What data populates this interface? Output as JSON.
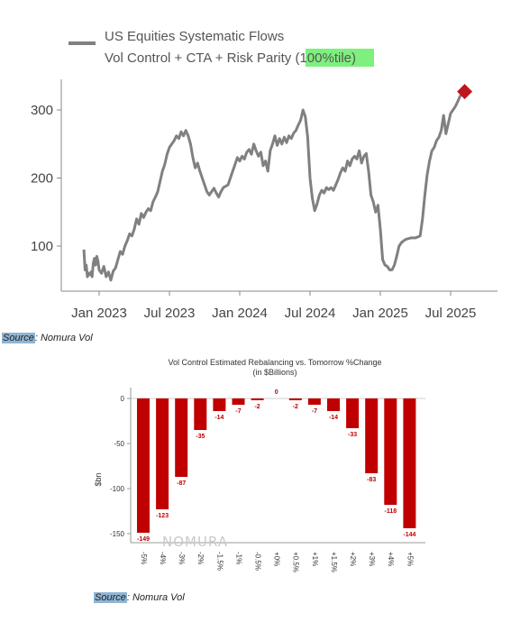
{
  "chart_data": [
    {
      "type": "line",
      "legend": {
        "line1": "US Equities Systematic Flows",
        "line2_prefix": "Vol Control + CTA + Risk Parity ",
        "line2_highlight": "(100%tile)",
        "placement": "top-left"
      },
      "xticks": [
        "Jan 2023",
        "Jul 2023",
        "Jan 2024",
        "Jul 2024",
        "Jan 2025",
        "Jul 2025"
      ],
      "yticks": [
        "100",
        "200",
        "300"
      ],
      "ylim": [
        40,
        350
      ],
      "xlim_months": [
        0,
        34
      ],
      "series": [
        {
          "color": "#808080",
          "points": [
            [
              -1.3,
              95
            ],
            [
              -1.2,
              65
            ],
            [
              -1.1,
              72
            ],
            [
              -1.0,
              55
            ],
            [
              -0.9,
              60
            ],
            [
              -0.8,
              58
            ],
            [
              -0.7,
              62
            ],
            [
              -0.6,
              55
            ],
            [
              -0.5,
              75
            ],
            [
              -0.4,
              82
            ],
            [
              -0.3,
              72
            ],
            [
              -0.2,
              85
            ],
            [
              -0.1,
              78
            ],
            [
              0.0,
              65
            ],
            [
              0.2,
              60
            ],
            [
              0.4,
              70
            ],
            [
              0.6,
              55
            ],
            [
              0.8,
              62
            ],
            [
              1.0,
              50
            ],
            [
              1.2,
              63
            ],
            [
              1.4,
              68
            ],
            [
              1.6,
              80
            ],
            [
              1.8,
              92
            ],
            [
              2.0,
              88
            ],
            [
              2.2,
              100
            ],
            [
              2.4,
              108
            ],
            [
              2.6,
              118
            ],
            [
              2.8,
              115
            ],
            [
              3.0,
              125
            ],
            [
              3.2,
              140
            ],
            [
              3.4,
              132
            ],
            [
              3.6,
              148
            ],
            [
              3.8,
              142
            ],
            [
              4.0,
              150
            ],
            [
              4.2,
              155
            ],
            [
              4.4,
              152
            ],
            [
              4.6,
              165
            ],
            [
              4.8,
              172
            ],
            [
              5.0,
              180
            ],
            [
              5.2,
              195
            ],
            [
              5.4,
              210
            ],
            [
              5.6,
              220
            ],
            [
              5.8,
              235
            ],
            [
              6.0,
              245
            ],
            [
              6.2,
              250
            ],
            [
              6.4,
              255
            ],
            [
              6.6,
              262
            ],
            [
              6.8,
              258
            ],
            [
              7.0,
              268
            ],
            [
              7.2,
              262
            ],
            [
              7.4,
              270
            ],
            [
              7.6,
              262
            ],
            [
              7.8,
              250
            ],
            [
              8.0,
              230
            ],
            [
              8.2,
              215
            ],
            [
              8.4,
              222
            ],
            [
              8.6,
              210
            ],
            [
              8.8,
              200
            ],
            [
              9.0,
              190
            ],
            [
              9.2,
              180
            ],
            [
              9.4,
              175
            ],
            [
              9.6,
              180
            ],
            [
              9.8,
              185
            ],
            [
              10.0,
              178
            ],
            [
              10.2,
              172
            ],
            [
              10.4,
              180
            ],
            [
              10.6,
              186
            ],
            [
              11.0,
              190
            ],
            [
              11.2,
              200
            ],
            [
              11.4,
              210
            ],
            [
              11.6,
              220
            ],
            [
              11.8,
              230
            ],
            [
              12.0,
              225
            ],
            [
              12.2,
              232
            ],
            [
              12.4,
              228
            ],
            [
              12.6,
              238
            ],
            [
              12.8,
              242
            ],
            [
              13.0,
              235
            ],
            [
              13.2,
              250
            ],
            [
              13.4,
              240
            ],
            [
              13.6,
              232
            ],
            [
              13.8,
              238
            ],
            [
              14.0,
              218
            ],
            [
              14.2,
              225
            ],
            [
              14.4,
              210
            ],
            [
              14.6,
              240
            ],
            [
              14.8,
              250
            ],
            [
              15.0,
              262
            ],
            [
              15.2,
              248
            ],
            [
              15.4,
              258
            ],
            [
              15.6,
              250
            ],
            [
              15.8,
              260
            ],
            [
              16.0,
              252
            ],
            [
              16.2,
              262
            ],
            [
              16.4,
              258
            ],
            [
              16.6,
              266
            ],
            [
              16.8,
              270
            ],
            [
              17.0,
              278
            ],
            [
              17.2,
              285
            ],
            [
              17.4,
              300
            ],
            [
              17.6,
              290
            ],
            [
              17.8,
              260
            ],
            [
              18.0,
              200
            ],
            [
              18.2,
              170
            ],
            [
              18.4,
              152
            ],
            [
              18.6,
              162
            ],
            [
              18.8,
              175
            ],
            [
              19.0,
              182
            ],
            [
              19.2,
              178
            ],
            [
              19.4,
              186
            ],
            [
              19.6,
              183
            ],
            [
              19.8,
              186
            ],
            [
              20.0,
              182
            ],
            [
              20.2,
              190
            ],
            [
              20.4,
              198
            ],
            [
              20.6,
              208
            ],
            [
              20.8,
              215
            ],
            [
              21.0,
              210
            ],
            [
              21.2,
              225
            ],
            [
              21.4,
              218
            ],
            [
              21.6,
              228
            ],
            [
              21.8,
              232
            ],
            [
              22.0,
              228
            ],
            [
              22.2,
              240
            ],
            [
              22.4,
              222
            ],
            [
              22.6,
              232
            ],
            [
              22.8,
              236
            ],
            [
              23.0,
              210
            ],
            [
              23.2,
              175
            ],
            [
              23.4,
              165
            ],
            [
              23.6,
              150
            ],
            [
              23.8,
              160
            ],
            [
              24.0,
              125
            ],
            [
              24.2,
              80
            ],
            [
              24.4,
              72
            ],
            [
              24.6,
              70
            ],
            [
              24.8,
              65
            ],
            [
              25.0,
              65
            ],
            [
              25.2,
              72
            ],
            [
              25.4,
              85
            ],
            [
              25.6,
              100
            ],
            [
              25.8,
              105
            ],
            [
              26.0,
              108
            ],
            [
              26.2,
              110
            ],
            [
              26.6,
              112
            ],
            [
              27.0,
              112
            ],
            [
              27.4,
              115
            ],
            [
              27.6,
              140
            ],
            [
              27.8,
              175
            ],
            [
              28.0,
              205
            ],
            [
              28.2,
              225
            ],
            [
              28.4,
              240
            ],
            [
              28.6,
              245
            ],
            [
              28.8,
              255
            ],
            [
              29.0,
              260
            ],
            [
              29.2,
              270
            ],
            [
              29.4,
              292
            ],
            [
              29.6,
              265
            ],
            [
              29.8,
              280
            ],
            [
              30.0,
              295
            ],
            [
              30.2,
              300
            ],
            [
              30.4,
              305
            ],
            [
              30.6,
              312
            ],
            [
              30.8,
              320
            ],
            [
              31.0,
              325
            ]
          ]
        }
      ],
      "marker": {
        "x": 31.2,
        "y": 327,
        "color": "#c0141c",
        "shape": "diamond"
      }
    },
    {
      "type": "bar",
      "title": "Vol Control Estimated Rebalancing vs. Tomorrow %Change",
      "subtitle": "(in $Billions)",
      "ylabel": "$bn",
      "categories": [
        "-5%",
        "-4%",
        "-3%",
        "-2%",
        "-1.5%",
        "-1%",
        "-0.5%",
        "+0%",
        "+0.5%",
        "+1%",
        "+1.5%",
        "+2%",
        "+3%",
        "+4%",
        "+5%"
      ],
      "values": [
        -149,
        -123,
        -87,
        -35,
        -14,
        -7,
        -2,
        0,
        -2,
        -7,
        -14,
        -33,
        -83,
        -118,
        -144
      ],
      "yticks": [
        0,
        -50,
        -100,
        -150
      ],
      "ylim": [
        -160,
        5
      ],
      "bar_color": "#c00000",
      "label_color": "#c00000",
      "watermark": "NOMURA"
    }
  ],
  "sources": [
    {
      "label": "Source",
      "rest": ": Nomura Vol"
    },
    {
      "label": "Source",
      "rest": ": Nomura Vol"
    }
  ]
}
